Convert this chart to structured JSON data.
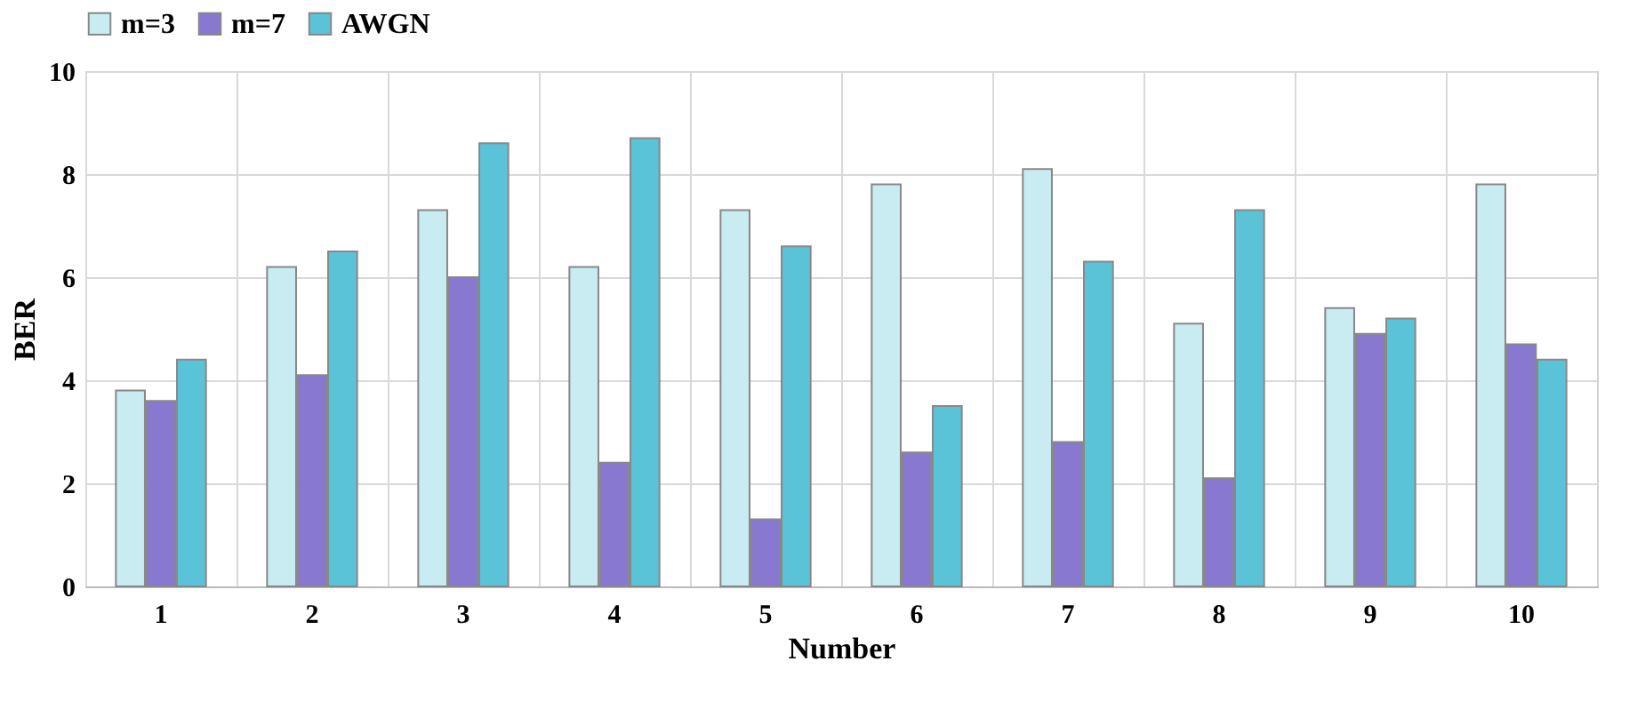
{
  "chart_data": {
    "type": "bar",
    "xlabel": "Number",
    "ylabel": "BER",
    "categories": [
      "1",
      "2",
      "3",
      "4",
      "5",
      "6",
      "7",
      "8",
      "9",
      "10"
    ],
    "series": [
      {
        "name": "m=3",
        "color": "#c9ecf2",
        "values": [
          3.8,
          6.2,
          7.3,
          6.2,
          7.3,
          7.8,
          8.1,
          5.1,
          5.4,
          7.8
        ]
      },
      {
        "name": "m=7",
        "color": "#8878d0",
        "values": [
          3.6,
          4.1,
          6.0,
          2.4,
          1.3,
          2.6,
          2.8,
          2.1,
          4.9,
          4.7
        ]
      },
      {
        "name": "AWGN",
        "color": "#5bc3d8",
        "values": [
          4.4,
          6.5,
          8.6,
          8.7,
          6.6,
          3.5,
          6.3,
          7.3,
          5.2,
          4.4
        ]
      }
    ],
    "ylim": [
      0,
      10
    ],
    "yticks": [
      0,
      2,
      4,
      6,
      8,
      10
    ],
    "grid": true,
    "legend": "top"
  }
}
